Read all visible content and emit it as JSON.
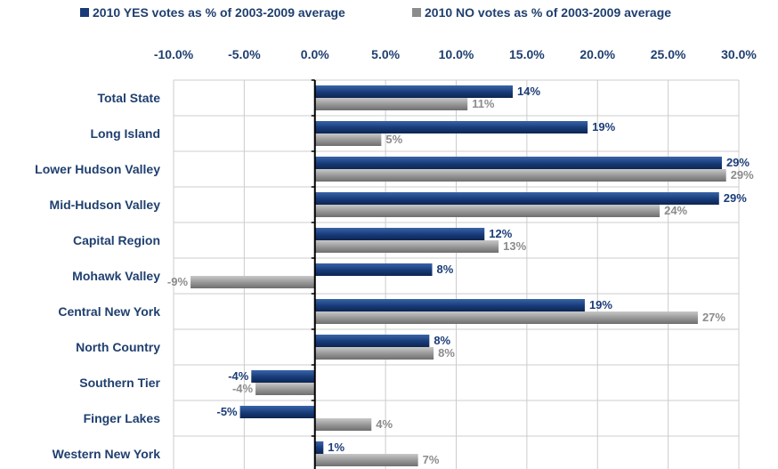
{
  "colors": {
    "yes": "#173b78",
    "no": "#9a9a9a",
    "text": "#1f3f6f",
    "grid": "#cccccc"
  },
  "chart_data": {
    "type": "bar",
    "orientation": "horizontal",
    "x_ticks": [
      "-10.0%",
      "-5.0%",
      "0.0%",
      "5.0%",
      "10.0%",
      "15.0%",
      "20.0%",
      "25.0%",
      "30.0%"
    ],
    "xlim": [
      -10,
      30
    ],
    "x_axis_position": "top",
    "grid": true,
    "legend_position": "top",
    "categories": [
      "Total State",
      "Long Island",
      "Lower Hudson Valley",
      "Mid-Hudson Valley",
      "Capital Region",
      "Mohawk Valley",
      "Central New York",
      "North Country",
      "Southern Tier",
      "Finger Lakes",
      "Western New York"
    ],
    "series": [
      {
        "name": "2010 YES votes as % of 2003-2009 average",
        "values": [
          14,
          19.3,
          28.8,
          28.6,
          12,
          8.3,
          19.1,
          8.1,
          -4.5,
          -5.3,
          0.6
        ],
        "labels": [
          "14%",
          "19%",
          "29%",
          "29%",
          "12%",
          "8%",
          "19%",
          "8%",
          "-4%",
          "-5%",
          "1%"
        ]
      },
      {
        "name": "2010 NO votes as % of 2003-2009 average",
        "values": [
          10.8,
          4.7,
          29.1,
          24.4,
          13,
          -8.8,
          27.1,
          8.4,
          -4.2,
          4,
          7.3
        ],
        "labels": [
          "11%",
          "5%",
          "29%",
          "24%",
          "13%",
          "-9%",
          "27%",
          "8%",
          "-4%",
          "4%",
          "7%"
        ]
      }
    ]
  }
}
